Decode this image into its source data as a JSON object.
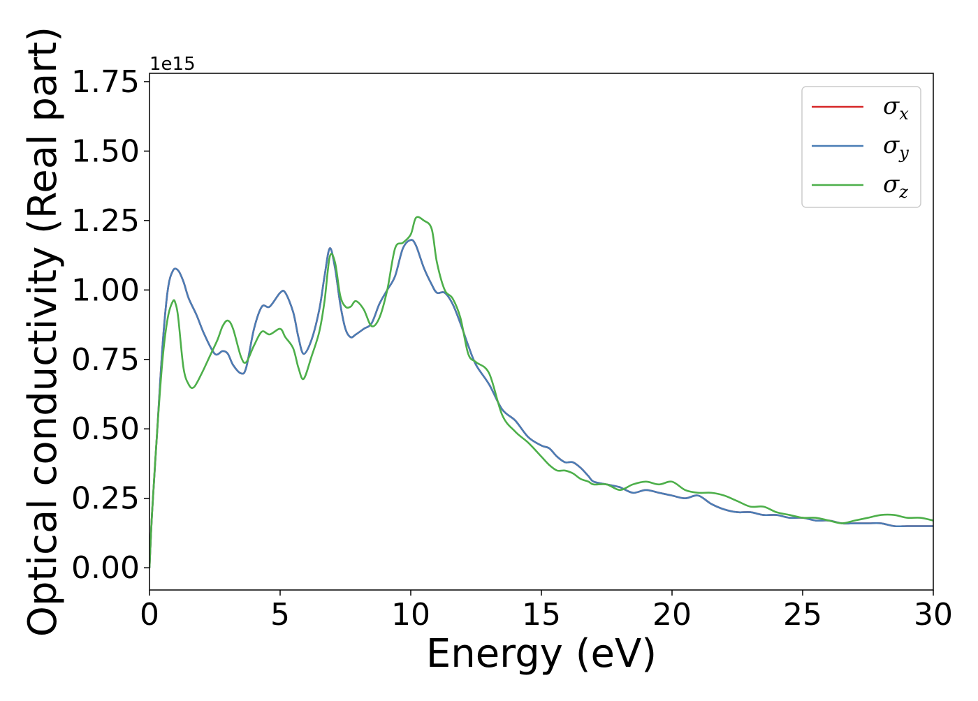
{
  "chart_data": {
    "type": "line",
    "xlabel": "Energy (eV)",
    "ylabel": "Optical conductivity (Real part)",
    "y_offset_text": "1e15",
    "y_multiplier": 1000000000000000.0,
    "xlim": [
      0,
      30
    ],
    "ylim": [
      -0.08,
      1.78
    ],
    "xticks": [
      0,
      5,
      10,
      15,
      20,
      25,
      30
    ],
    "xtick_labels": [
      "0",
      "5",
      "10",
      "15",
      "20",
      "25",
      "30"
    ],
    "yticks": [
      0.0,
      0.25,
      0.5,
      0.75,
      1.0,
      1.25,
      1.5,
      1.75
    ],
    "ytick_labels": [
      "0.00",
      "0.25",
      "0.50",
      "0.75",
      "1.00",
      "1.25",
      "1.50",
      "1.75"
    ],
    "grid": false,
    "legend_position": "top-right",
    "series": [
      {
        "name": "σx",
        "symbol": "σ",
        "subscript": "x",
        "color": "#d62728",
        "x": [
          0,
          0.1,
          0.3,
          0.5,
          0.7,
          0.9,
          1.1,
          1.3,
          1.5,
          1.8,
          2.1,
          2.5,
          2.8,
          3.0,
          3.2,
          3.5,
          3.7,
          4.0,
          4.3,
          4.6,
          5.0,
          5.2,
          5.5,
          5.7,
          5.9,
          6.2,
          6.5,
          6.7,
          6.9,
          7.1,
          7.3,
          7.5,
          7.7,
          7.9,
          8.2,
          8.5,
          8.8,
          9.1,
          9.4,
          9.7,
          10.0,
          10.2,
          10.5,
          10.8,
          11.0,
          11.3,
          11.6,
          11.9,
          12.2,
          12.5,
          13.0,
          13.5,
          14.0,
          14.5,
          15.0,
          15.3,
          15.6,
          15.9,
          16.2,
          16.5,
          16.8,
          17.0,
          17.5,
          18.0,
          18.5,
          19.0,
          19.5,
          20.0,
          20.5,
          21.0,
          21.5,
          22.0,
          22.5,
          23.0,
          23.5,
          24.0,
          24.5,
          25.0,
          25.5,
          26.0,
          26.5,
          27.0,
          27.5,
          28.0,
          28.5,
          29.0,
          29.5,
          30.0
        ],
        "y": [
          0.0,
          0.2,
          0.5,
          0.8,
          1.0,
          1.07,
          1.07,
          1.03,
          0.97,
          0.91,
          0.84,
          0.77,
          0.78,
          0.77,
          0.73,
          0.7,
          0.72,
          0.86,
          0.94,
          0.94,
          0.99,
          0.99,
          0.92,
          0.83,
          0.77,
          0.82,
          0.93,
          1.05,
          1.15,
          1.08,
          0.95,
          0.86,
          0.83,
          0.84,
          0.86,
          0.88,
          0.95,
          1.0,
          1.05,
          1.15,
          1.18,
          1.16,
          1.08,
          1.02,
          0.99,
          0.99,
          0.95,
          0.88,
          0.8,
          0.73,
          0.66,
          0.57,
          0.53,
          0.47,
          0.44,
          0.43,
          0.4,
          0.38,
          0.38,
          0.36,
          0.33,
          0.31,
          0.3,
          0.29,
          0.27,
          0.28,
          0.27,
          0.26,
          0.25,
          0.26,
          0.23,
          0.21,
          0.2,
          0.2,
          0.19,
          0.19,
          0.18,
          0.18,
          0.17,
          0.17,
          0.16,
          0.16,
          0.16,
          0.16,
          0.15,
          0.15,
          0.15,
          0.15
        ]
      },
      {
        "name": "σy",
        "symbol": "σ",
        "subscript": "y",
        "color": "#4a7db5",
        "x": [
          0,
          0.1,
          0.3,
          0.5,
          0.7,
          0.9,
          1.1,
          1.3,
          1.5,
          1.8,
          2.1,
          2.5,
          2.8,
          3.0,
          3.2,
          3.5,
          3.7,
          4.0,
          4.3,
          4.6,
          5.0,
          5.2,
          5.5,
          5.7,
          5.9,
          6.2,
          6.5,
          6.7,
          6.9,
          7.1,
          7.3,
          7.5,
          7.7,
          7.9,
          8.2,
          8.5,
          8.8,
          9.1,
          9.4,
          9.7,
          10.0,
          10.2,
          10.5,
          10.8,
          11.0,
          11.3,
          11.6,
          11.9,
          12.2,
          12.5,
          13.0,
          13.5,
          14.0,
          14.5,
          15.0,
          15.3,
          15.6,
          15.9,
          16.2,
          16.5,
          16.8,
          17.0,
          17.5,
          18.0,
          18.5,
          19.0,
          19.5,
          20.0,
          20.5,
          21.0,
          21.5,
          22.0,
          22.5,
          23.0,
          23.5,
          24.0,
          24.5,
          25.0,
          25.5,
          26.0,
          26.5,
          27.0,
          27.5,
          28.0,
          28.5,
          29.0,
          29.5,
          30.0
        ],
        "y": [
          0.0,
          0.2,
          0.5,
          0.8,
          1.0,
          1.07,
          1.07,
          1.03,
          0.97,
          0.91,
          0.84,
          0.77,
          0.78,
          0.77,
          0.73,
          0.7,
          0.72,
          0.86,
          0.94,
          0.94,
          0.99,
          0.99,
          0.92,
          0.83,
          0.77,
          0.82,
          0.93,
          1.05,
          1.15,
          1.08,
          0.95,
          0.86,
          0.83,
          0.84,
          0.86,
          0.88,
          0.95,
          1.0,
          1.05,
          1.15,
          1.18,
          1.16,
          1.08,
          1.02,
          0.99,
          0.99,
          0.95,
          0.88,
          0.8,
          0.73,
          0.66,
          0.57,
          0.53,
          0.47,
          0.44,
          0.43,
          0.4,
          0.38,
          0.38,
          0.36,
          0.33,
          0.31,
          0.3,
          0.29,
          0.27,
          0.28,
          0.27,
          0.26,
          0.25,
          0.26,
          0.23,
          0.21,
          0.2,
          0.2,
          0.19,
          0.19,
          0.18,
          0.18,
          0.17,
          0.17,
          0.16,
          0.16,
          0.16,
          0.16,
          0.15,
          0.15,
          0.15,
          0.15
        ]
      },
      {
        "name": "σz",
        "symbol": "σ",
        "subscript": "z",
        "color": "#4daf4a",
        "x": [
          0,
          0.1,
          0.3,
          0.5,
          0.7,
          0.9,
          1.0,
          1.1,
          1.3,
          1.5,
          1.7,
          2.0,
          2.3,
          2.6,
          2.8,
          3.0,
          3.2,
          3.5,
          3.7,
          4.0,
          4.3,
          4.6,
          5.0,
          5.2,
          5.5,
          5.7,
          5.9,
          6.2,
          6.5,
          6.7,
          6.9,
          7.1,
          7.3,
          7.5,
          7.7,
          7.9,
          8.2,
          8.5,
          8.8,
          9.1,
          9.4,
          9.7,
          10.0,
          10.2,
          10.5,
          10.8,
          11.0,
          11.3,
          11.6,
          11.9,
          12.2,
          12.5,
          13.0,
          13.5,
          14.0,
          14.5,
          15.0,
          15.3,
          15.6,
          15.9,
          16.2,
          16.5,
          16.8,
          17.0,
          17.5,
          18.0,
          18.5,
          19.0,
          19.5,
          20.0,
          20.5,
          21.0,
          21.5,
          22.0,
          22.5,
          23.0,
          23.5,
          24.0,
          24.5,
          25.0,
          25.5,
          26.0,
          26.5,
          27.0,
          27.5,
          28.0,
          28.5,
          29.0,
          29.5,
          30.0
        ],
        "y": [
          0.0,
          0.2,
          0.5,
          0.75,
          0.9,
          0.96,
          0.95,
          0.9,
          0.72,
          0.66,
          0.65,
          0.7,
          0.76,
          0.82,
          0.87,
          0.89,
          0.86,
          0.76,
          0.74,
          0.8,
          0.85,
          0.84,
          0.86,
          0.83,
          0.79,
          0.72,
          0.68,
          0.76,
          0.85,
          0.96,
          1.12,
          1.1,
          0.98,
          0.94,
          0.94,
          0.96,
          0.93,
          0.87,
          0.9,
          1.0,
          1.15,
          1.17,
          1.2,
          1.26,
          1.25,
          1.22,
          1.1,
          1.0,
          0.97,
          0.9,
          0.77,
          0.74,
          0.7,
          0.55,
          0.49,
          0.45,
          0.4,
          0.37,
          0.35,
          0.35,
          0.34,
          0.32,
          0.31,
          0.3,
          0.3,
          0.28,
          0.3,
          0.31,
          0.3,
          0.31,
          0.28,
          0.27,
          0.27,
          0.26,
          0.24,
          0.22,
          0.22,
          0.2,
          0.19,
          0.18,
          0.18,
          0.17,
          0.16,
          0.17,
          0.18,
          0.19,
          0.19,
          0.18,
          0.18,
          0.17
        ]
      }
    ]
  }
}
